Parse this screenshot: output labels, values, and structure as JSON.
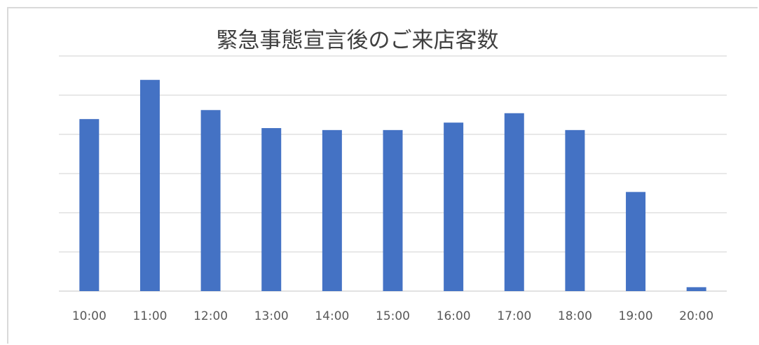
{
  "chart_data": {
    "type": "bar",
    "title": "緊急事態宣言後のご来店客数",
    "categories": [
      "10:00",
      "11:00",
      "12:00",
      "13:00",
      "14:00",
      "15:00",
      "16:00",
      "17:00",
      "18:00",
      "19:00",
      "20:00"
    ],
    "series": [
      {
        "values": [
          4.39,
          5.39,
          4.62,
          4.16,
          4.11,
          4.11,
          4.3,
          4.54,
          4.11,
          2.53,
          0.1
        ]
      }
    ],
    "xlabel": "",
    "ylabel": "",
    "ylim": [
      0,
      6
    ],
    "grid": true,
    "legend": "none",
    "colors": {
      "bar": "#4472c4",
      "grid": "#d9d9d9",
      "title": "#404040",
      "tick_label": "#595959"
    }
  }
}
